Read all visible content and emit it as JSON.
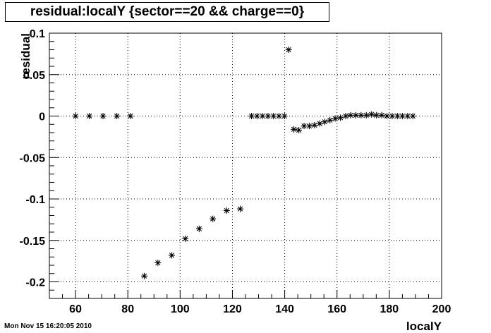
{
  "header": {
    "title": "residual:localY {sector==20 && charge==0}"
  },
  "footer": {
    "timestamp": "Mon Nov 15 16:20:05 2010"
  },
  "chart_data": {
    "type": "scatter",
    "title": "residual:localY {sector==20 && charge==0}",
    "xlabel": "localY",
    "ylabel": "residual",
    "xlim": [
      50,
      200
    ],
    "ylim": [
      -0.22,
      0.1
    ],
    "x_ticks": [
      "60",
      "80",
      "100",
      "120",
      "140",
      "160",
      "180",
      "200"
    ],
    "y_ticks": [
      "0.1",
      "0.05",
      "0",
      "-0.05",
      "-0.1",
      "-0.15",
      "-0.2"
    ],
    "grid": true,
    "marker": "*",
    "marker_color": "#000000",
    "x": [
      60,
      65.3,
      70.5,
      75.8,
      81,
      86.3,
      91.5,
      96.8,
      102,
      107.3,
      112.5,
      117.8,
      123,
      127.3,
      129.4,
      131.5,
      133.6,
      135.7,
      137.8,
      139.9,
      141.5,
      143.5,
      145.4,
      147.4,
      149.4,
      151.4,
      153.4,
      155.3,
      157.3,
      159.3,
      161.3,
      163.3,
      165.2,
      167.2,
      169.2,
      171.2,
      173.2,
      175.1,
      177.1,
      179.1,
      181.1,
      183.1,
      185,
      187,
      189
    ],
    "y": [
      0,
      0,
      0,
      0,
      0,
      -0.193,
      -0.177,
      -0.168,
      -0.148,
      -0.136,
      -0.124,
      -0.114,
      -0.112,
      0,
      0,
      0,
      0,
      0,
      0,
      0,
      0.08,
      -0.016,
      -0.017,
      -0.012,
      -0.012,
      -0.011,
      -0.009,
      -0.007,
      -0.005,
      -0.003,
      -0.002,
      0,
      0.001,
      0.001,
      0.001,
      0.001,
      0.002,
      0.001,
      0.001,
      0,
      0,
      0,
      0,
      0,
      0
    ]
  }
}
